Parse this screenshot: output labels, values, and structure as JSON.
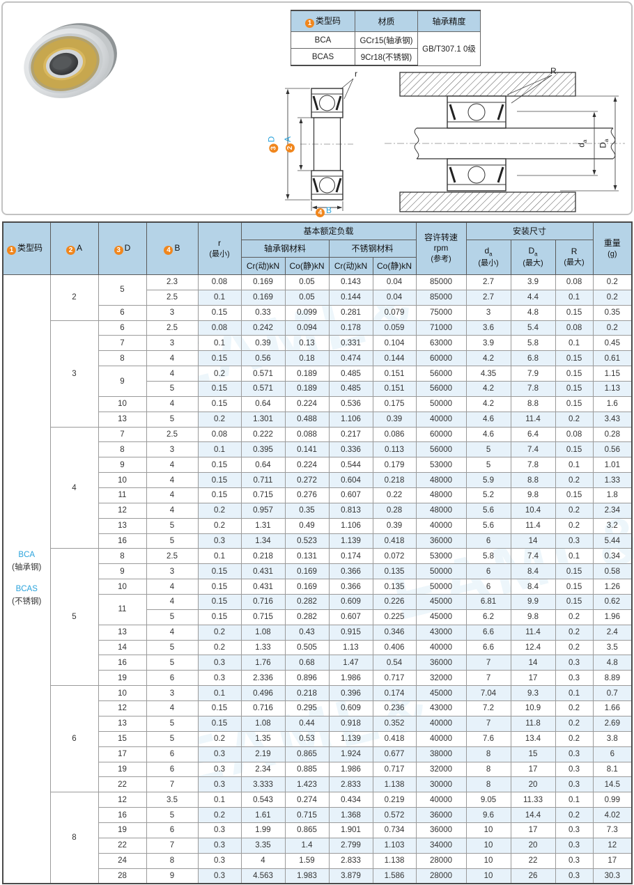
{
  "accent_blue": "#2aa3dc",
  "header_bg": "#b5d3e7",
  "stripe_bg": "#e7f2fa",
  "circle_orange": "#f0861d",
  "watermark": {
    "text": "EAML&"
  },
  "mini_table": {
    "headers": {
      "type_code": "类型码",
      "material": "材质",
      "precision": "轴承精度"
    },
    "circle1": "1",
    "rows": [
      {
        "code": "BCA",
        "material": "GCr15(轴承钢)"
      },
      {
        "code": "BCAS",
        "material": "9Cr18(不锈钢)"
      }
    ],
    "precision_value": "GB/T307.1 0级"
  },
  "diagram": {
    "r_label": "r",
    "R_label": "R",
    "circle2": "2",
    "circle3": "3",
    "circle4": "4",
    "D_label": "D",
    "A_label": "A",
    "B_label": "B",
    "da_main": "d",
    "Da_main": "D",
    "sub_a": "a"
  },
  "main_table": {
    "header": {
      "circle1": "1",
      "circle2": "2",
      "circle3": "3",
      "circle4": "4",
      "type_code": "类型码",
      "a": "A",
      "d": "D",
      "b": "B",
      "r1": "r",
      "r2": "(最小)",
      "load": "基本额定负载",
      "steel": "轴承钢材料",
      "stainless": "不锈钢材料",
      "cr": "Cr(动)kN",
      "co": "Co(静)kN",
      "rpm1": "容许转速",
      "rpm2": "rpm",
      "rpm3": "(参考)",
      "mount": "安装尺寸",
      "da_main": "d",
      "Da_main": "D",
      "sub_a": "a",
      "R": "R",
      "min": "(最小)",
      "max": "(最大)",
      "w1": "重量",
      "w2": "(g)"
    },
    "type_codes": [
      {
        "code": "BCA",
        "material": "(轴承钢)"
      },
      {
        "code": "BCAS",
        "material": "(不锈钢)"
      }
    ],
    "groups": [
      {
        "a": "2",
        "rows": [
          {
            "d": "5",
            "dspan": 2,
            "b": "2.3",
            "v": [
              "0.08",
              "0.169",
              "0.05",
              "0.143",
              "0.04",
              "85000",
              "2.7",
              "3.9",
              "0.08",
              "0.2"
            ]
          },
          {
            "b": "2.5",
            "v": [
              "0.1",
              "0.169",
              "0.05",
              "0.144",
              "0.04",
              "85000",
              "2.7",
              "4.4",
              "0.1",
              "0.2"
            ]
          },
          {
            "d": "6",
            "b": "3",
            "v": [
              "0.15",
              "0.33",
              "0.099",
              "0.281",
              "0.079",
              "75000",
              "3",
              "4.8",
              "0.15",
              "0.35"
            ]
          }
        ]
      },
      {
        "a": "3",
        "rows": [
          {
            "d": "6",
            "b": "2.5",
            "v": [
              "0.08",
              "0.242",
              "0.094",
              "0.178",
              "0.059",
              "71000",
              "3.6",
              "5.4",
              "0.08",
              "0.2"
            ]
          },
          {
            "d": "7",
            "b": "3",
            "v": [
              "0.1",
              "0.39",
              "0.13",
              "0.331",
              "0.104",
              "63000",
              "3.9",
              "5.8",
              "0.1",
              "0.45"
            ]
          },
          {
            "d": "8",
            "b": "4",
            "v": [
              "0.15",
              "0.56",
              "0.18",
              "0.474",
              "0.144",
              "60000",
              "4.2",
              "6.8",
              "0.15",
              "0.61"
            ]
          },
          {
            "d": "9",
            "dspan": 2,
            "b": "4",
            "v": [
              "0.2",
              "0.571",
              "0.189",
              "0.485",
              "0.151",
              "56000",
              "4.35",
              "7.9",
              "0.15",
              "1.15"
            ]
          },
          {
            "b": "5",
            "v": [
              "0.15",
              "0.571",
              "0.189",
              "0.485",
              "0.151",
              "56000",
              "4.2",
              "7.8",
              "0.15",
              "1.13"
            ]
          },
          {
            "d": "10",
            "b": "4",
            "v": [
              "0.15",
              "0.64",
              "0.224",
              "0.536",
              "0.175",
              "50000",
              "4.2",
              "8.8",
              "0.15",
              "1.6"
            ]
          },
          {
            "d": "13",
            "b": "5",
            "v": [
              "0.2",
              "1.301",
              "0.488",
              "1.106",
              "0.39",
              "40000",
              "4.6",
              "11.4",
              "0.2",
              "3.43"
            ]
          }
        ]
      },
      {
        "a": "4",
        "rows": [
          {
            "d": "7",
            "b": "2.5",
            "v": [
              "0.08",
              "0.222",
              "0.088",
              "0.217",
              "0.086",
              "60000",
              "4.6",
              "6.4",
              "0.08",
              "0.28"
            ]
          },
          {
            "d": "8",
            "b": "3",
            "v": [
              "0.1",
              "0.395",
              "0.141",
              "0.336",
              "0.113",
              "56000",
              "5",
              "7.4",
              "0.15",
              "0.56"
            ]
          },
          {
            "d": "9",
            "b": "4",
            "v": [
              "0.15",
              "0.64",
              "0.224",
              "0.544",
              "0.179",
              "53000",
              "5",
              "7.8",
              "0.1",
              "1.01"
            ]
          },
          {
            "d": "10",
            "b": "4",
            "v": [
              "0.15",
              "0.711",
              "0.272",
              "0.604",
              "0.218",
              "48000",
              "5.9",
              "8.8",
              "0.2",
              "1.33"
            ]
          },
          {
            "d": "11",
            "b": "4",
            "v": [
              "0.15",
              "0.715",
              "0.276",
              "0.607",
              "0.22",
              "48000",
              "5.2",
              "9.8",
              "0.15",
              "1.8"
            ]
          },
          {
            "d": "12",
            "b": "4",
            "v": [
              "0.2",
              "0.957",
              "0.35",
              "0.813",
              "0.28",
              "48000",
              "5.6",
              "10.4",
              "0.2",
              "2.34"
            ]
          },
          {
            "d": "13",
            "b": "5",
            "v": [
              "0.2",
              "1.31",
              "0.49",
              "1.106",
              "0.39",
              "40000",
              "5.6",
              "11.4",
              "0.2",
              "3.2"
            ]
          },
          {
            "d": "16",
            "b": "5",
            "v": [
              "0.3",
              "1.34",
              "0.523",
              "1.139",
              "0.418",
              "36000",
              "6",
              "14",
              "0.3",
              "5.44"
            ]
          }
        ]
      },
      {
        "a": "5",
        "rows": [
          {
            "d": "8",
            "b": "2.5",
            "v": [
              "0.1",
              "0.218",
              "0.131",
              "0.174",
              "0.072",
              "53000",
              "5.8",
              "7.4",
              "0.1",
              "0.34"
            ]
          },
          {
            "d": "9",
            "b": "3",
            "v": [
              "0.15",
              "0.431",
              "0.169",
              "0.366",
              "0.135",
              "50000",
              "6",
              "8.4",
              "0.15",
              "0.58"
            ]
          },
          {
            "d": "10",
            "b": "4",
            "v": [
              "0.15",
              "0.431",
              "0.169",
              "0.366",
              "0.135",
              "50000",
              "6",
              "8.4",
              "0.15",
              "1.26"
            ]
          },
          {
            "d": "11",
            "dspan": 2,
            "b": "4",
            "v": [
              "0.15",
              "0.716",
              "0.282",
              "0.609",
              "0.226",
              "45000",
              "6.81",
              "9.9",
              "0.15",
              "0.62"
            ]
          },
          {
            "b": "5",
            "v": [
              "0.15",
              "0.715",
              "0.282",
              "0.607",
              "0.225",
              "45000",
              "6.2",
              "9.8",
              "0.2",
              "1.96"
            ]
          },
          {
            "d": "13",
            "b": "4",
            "v": [
              "0.2",
              "1.08",
              "0.43",
              "0.915",
              "0.346",
              "43000",
              "6.6",
              "11.4",
              "0.2",
              "2.4"
            ]
          },
          {
            "d": "14",
            "b": "5",
            "v": [
              "0.2",
              "1.33",
              "0.505",
              "1.13",
              "0.406",
              "40000",
              "6.6",
              "12.4",
              "0.2",
              "3.5"
            ]
          },
          {
            "d": "16",
            "b": "5",
            "v": [
              "0.3",
              "1.76",
              "0.68",
              "1.47",
              "0.54",
              "36000",
              "7",
              "14",
              "0.3",
              "4.8"
            ]
          },
          {
            "d": "19",
            "b": "6",
            "v": [
              "0.3",
              "2.336",
              "0.896",
              "1.986",
              "0.717",
              "32000",
              "7",
              "17",
              "0.3",
              "8.89"
            ]
          }
        ]
      },
      {
        "a": "6",
        "rows": [
          {
            "d": "10",
            "b": "3",
            "v": [
              "0.1",
              "0.496",
              "0.218",
              "0.396",
              "0.174",
              "45000",
              "7.04",
              "9.3",
              "0.1",
              "0.7"
            ]
          },
          {
            "d": "12",
            "b": "4",
            "v": [
              "0.15",
              "0.716",
              "0.295",
              "0.609",
              "0.236",
              "43000",
              "7.2",
              "10.9",
              "0.2",
              "1.66"
            ]
          },
          {
            "d": "13",
            "b": "5",
            "v": [
              "0.15",
              "1.08",
              "0.44",
              "0.918",
              "0.352",
              "40000",
              "7",
              "11.8",
              "0.2",
              "2.69"
            ]
          },
          {
            "d": "15",
            "b": "5",
            "v": [
              "0.2",
              "1.35",
              "0.53",
              "1.139",
              "0.418",
              "40000",
              "7.6",
              "13.4",
              "0.2",
              "3.8"
            ]
          },
          {
            "d": "17",
            "b": "6",
            "v": [
              "0.3",
              "2.19",
              "0.865",
              "1.924",
              "0.677",
              "38000",
              "8",
              "15",
              "0.3",
              "6"
            ]
          },
          {
            "d": "19",
            "b": "6",
            "v": [
              "0.3",
              "2.34",
              "0.885",
              "1.986",
              "0.717",
              "32000",
              "8",
              "17",
              "0.3",
              "8.1"
            ]
          },
          {
            "d": "22",
            "b": "7",
            "v": [
              "0.3",
              "3.333",
              "1.423",
              "2.833",
              "1.138",
              "30000",
              "8",
              "20",
              "0.3",
              "14.5"
            ]
          }
        ]
      },
      {
        "a": "8",
        "rows": [
          {
            "d": "12",
            "b": "3.5",
            "v": [
              "0.1",
              "0.543",
              "0.274",
              "0.434",
              "0.219",
              "40000",
              "9.05",
              "11.33",
              "0.1",
              "0.99"
            ]
          },
          {
            "d": "16",
            "b": "5",
            "v": [
              "0.2",
              "1.61",
              "0.715",
              "1.368",
              "0.572",
              "36000",
              "9.6",
              "14.4",
              "0.2",
              "4.02"
            ]
          },
          {
            "d": "19",
            "b": "6",
            "v": [
              "0.3",
              "1.99",
              "0.865",
              "1.901",
              "0.734",
              "36000",
              "10",
              "17",
              "0.3",
              "7.3"
            ]
          },
          {
            "d": "22",
            "b": "7",
            "v": [
              "0.3",
              "3.35",
              "1.4",
              "2.799",
              "1.103",
              "34000",
              "10",
              "20",
              "0.3",
              "12"
            ]
          },
          {
            "d": "24",
            "b": "8",
            "v": [
              "0.3",
              "4",
              "1.59",
              "2.833",
              "1.138",
              "28000",
              "10",
              "22",
              "0.3",
              "17"
            ]
          },
          {
            "d": "28",
            "b": "9",
            "v": [
              "0.3",
              "4.563",
              "1.983",
              "3.879",
              "1.586",
              "28000",
              "10",
              "26",
              "0.3",
              "30.3"
            ]
          }
        ]
      }
    ]
  }
}
